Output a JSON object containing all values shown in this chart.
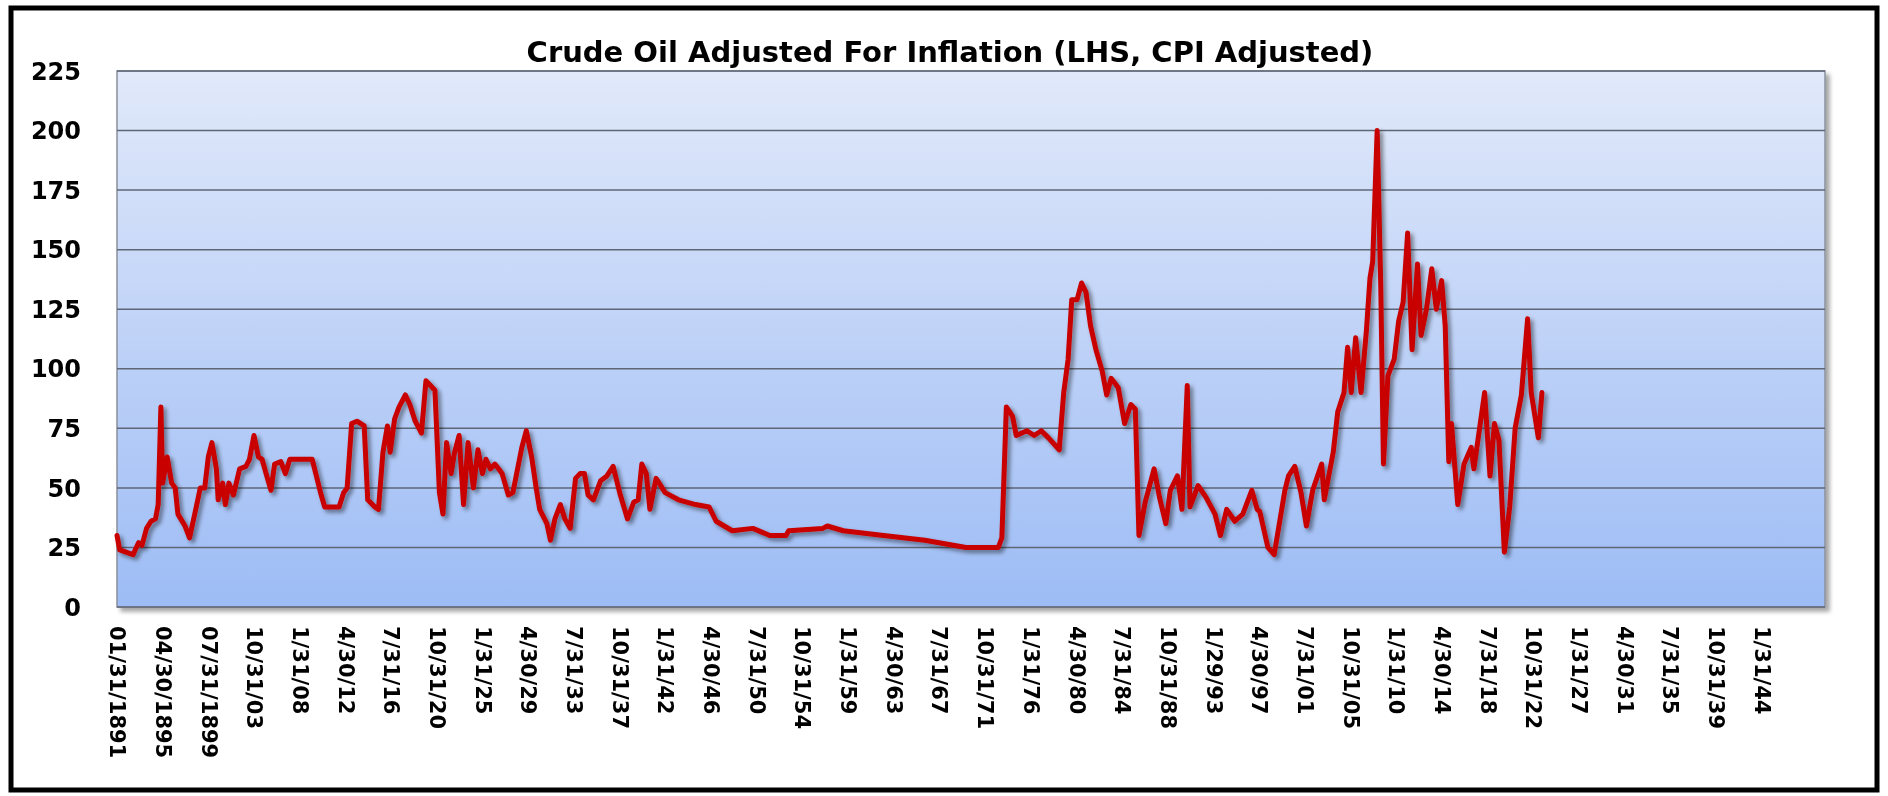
{
  "chart_data": {
    "type": "line",
    "title": "Crude Oil Adjusted For Inflation (LHS, CPI Adjusted)",
    "x": [
      "1891-01",
      "1891-04",
      "1892-07",
      "1893-01",
      "1893-05",
      "1893-10",
      "1894-03",
      "1894-08",
      "1894-11",
      "1895-02",
      "1895-04",
      "1895-09",
      "1896-02",
      "1896-06",
      "1896-09",
      "1897-05",
      "1897-10",
      "1898-05",
      "1898-10",
      "1899-03",
      "1899-07",
      "1899-11",
      "1900-04",
      "1900-06",
      "1900-11",
      "1901-02",
      "1901-06",
      "1901-11",
      "1902-06",
      "1903-01",
      "1903-05",
      "1903-10",
      "1904-03",
      "1904-07",
      "1905-01",
      "1905-05",
      "1905-09",
      "1906-04",
      "1906-09",
      "1907-02",
      "1908-01",
      "1909-03",
      "1910-01",
      "1910-05",
      "1911-09",
      "1912-02",
      "1912-06",
      "1912-11",
      "1913-05",
      "1914-01",
      "1914-05",
      "1915-01",
      "1915-05",
      "1915-10",
      "1916-03",
      "1916-06",
      "1916-11",
      "1917-04",
      "1917-11",
      "1918-04",
      "1918-10",
      "1919-05",
      "1919-10",
      "1920-03",
      "1920-08",
      "1921-01",
      "1921-05",
      "1921-09",
      "1922-02",
      "1922-06",
      "1922-11",
      "1923-04",
      "1923-09",
      "1924-03",
      "1924-08",
      "1925-01",
      "1925-05",
      "1925-10",
      "1926-03",
      "1926-11",
      "1927-06",
      "1927-11",
      "1928-09",
      "1929-02",
      "1929-08",
      "1930-01",
      "1930-05",
      "1931-01",
      "1931-05",
      "1931-10",
      "1932-04",
      "1932-09",
      "1933-03",
      "1933-09",
      "1934-02",
      "1934-07",
      "1934-11",
      "1935-05",
      "1936-01",
      "1936-08",
      "1937-03",
      "1937-11",
      "1938-07",
      "1939-02",
      "1939-07",
      "1939-11",
      "1940-04",
      "1940-08",
      "1941-03",
      "1942-01",
      "1943-04",
      "1944-11",
      "1946-02",
      "1946-10",
      "1948-04",
      "1950-03",
      "1951-10",
      "1953-04",
      "1953-07",
      "1956-09",
      "1957-02",
      "1958-08",
      "1962-05",
      "1966-03",
      "1970-01",
      "1973-01",
      "1973-05",
      "1973-10",
      "1974-05",
      "1974-09",
      "1975-09",
      "1976-05",
      "1977-01",
      "1977-09",
      "1978-09",
      "1979-02",
      "1979-07",
      "1979-11",
      "1980-05",
      "1980-10",
      "1981-03",
      "1981-08",
      "1982-02",
      "1982-09",
      "1983-02",
      "1983-07",
      "1984-03",
      "1984-10",
      "1985-05",
      "1985-10",
      "1986-02",
      "1986-09",
      "1987-07",
      "1988-01",
      "1988-08",
      "1989-01",
      "1989-09",
      "1990-02",
      "1990-08",
      "1990-11",
      "1991-08",
      "1992-05",
      "1993-03",
      "1993-09",
      "1994-04",
      "1995-01",
      "1995-10",
      "1996-08",
      "1997-02",
      "1997-05",
      "1998-02",
      "1998-09",
      "1999-09",
      "2000-01",
      "2000-08",
      "2001-03",
      "2001-09",
      "2002-04",
      "2003-02",
      "2003-05",
      "2004-03",
      "2004-08",
      "2005-03",
      "2005-07",
      "2005-11",
      "2006-04",
      "2006-10",
      "2007-04",
      "2007-08",
      "2007-11",
      "2008-04",
      "2008-08",
      "2008-11",
      "2009-04",
      "2009-11",
      "2010-04",
      "2010-09",
      "2011-02",
      "2011-07",
      "2012-01",
      "2012-05",
      "2012-11",
      "2013-05",
      "2013-10",
      "2014-04",
      "2014-08",
      "2014-12",
      "2015-03",
      "2015-10",
      "2016-05",
      "2017-01",
      "2017-04",
      "2018-04",
      "2018-10",
      "2019-03",
      "2019-08",
      "2020-02",
      "2020-08",
      "2021-02",
      "2021-09",
      "2022-04",
      "2022-08",
      "2023-04",
      "2023-08"
    ],
    "series": [
      {
        "color": "#c80000",
        "values": [
          30,
          24,
          22,
          27,
          26,
          33,
          36,
          37,
          43,
          84,
          52,
          63,
          52,
          50,
          39,
          34,
          29,
          41,
          50,
          50,
          63,
          69,
          58,
          45,
          52,
          43,
          52,
          47,
          58,
          59,
          62,
          72,
          63,
          62,
          54,
          49,
          60,
          61,
          56,
          62,
          62,
          62,
          47,
          42,
          42,
          48,
          50,
          77,
          78,
          76,
          45,
          42,
          41,
          65,
          76,
          65,
          79,
          84,
          89,
          85,
          78,
          73,
          95,
          93,
          91,
          48,
          39,
          69,
          56,
          65,
          72,
          43,
          69,
          50,
          66,
          56,
          62,
          58,
          60,
          56,
          47,
          48,
          67,
          74,
          63,
          50,
          41,
          35,
          28,
          37,
          43,
          37,
          33,
          54,
          56,
          56,
          47,
          45,
          53,
          55,
          59,
          47,
          37,
          44,
          45,
          60,
          56,
          41,
          54,
          48,
          45,
          43,
          42,
          36,
          32,
          33,
          30,
          30,
          32,
          33,
          34,
          32,
          30,
          28,
          25,
          25,
          29,
          84,
          80,
          72,
          74,
          72,
          74,
          71,
          66,
          90,
          104,
          129,
          129,
          136,
          132,
          118,
          108,
          99,
          89,
          96,
          92,
          77,
          85,
          83,
          30,
          44,
          58,
          46,
          35,
          49,
          55,
          41,
          93,
          42,
          51,
          46,
          39,
          30,
          41,
          36,
          39,
          49,
          41,
          40,
          25,
          22,
          49,
          55,
          59,
          48,
          34,
          49,
          60,
          45,
          65,
          82,
          90,
          109,
          90,
          113,
          90,
          116,
          138,
          145,
          200,
          135,
          60,
          97,
          104,
          120,
          128,
          157,
          108,
          144,
          114,
          125,
          142,
          125,
          137,
          118,
          61,
          77,
          43,
          60,
          67,
          58,
          90,
          55,
          77,
          70,
          23,
          42,
          75,
          89,
          121,
          90,
          71,
          90
        ]
      }
    ],
    "xlim": [
      "1891-01",
      "2049-12"
    ],
    "xticks": [
      {
        "value": "1891-01-31",
        "label": "01/31/1891"
      },
      {
        "value": "1895-04-30",
        "label": "04/30/1895"
      },
      {
        "value": "1899-07-31",
        "label": "07/31/1899"
      },
      {
        "value": "1903-10-31",
        "label": "10/31/03"
      },
      {
        "value": "1908-01-31",
        "label": "1/31/08"
      },
      {
        "value": "1912-04-30",
        "label": "4/30/12"
      },
      {
        "value": "1916-07-31",
        "label": "7/31/16"
      },
      {
        "value": "1920-10-31",
        "label": "10/31/20"
      },
      {
        "value": "1925-01-31",
        "label": "1/31/25"
      },
      {
        "value": "1929-04-30",
        "label": "4/30/29"
      },
      {
        "value": "1933-07-31",
        "label": "7/31/33"
      },
      {
        "value": "1937-10-31",
        "label": "10/31/37"
      },
      {
        "value": "1942-01-31",
        "label": "1/31/42"
      },
      {
        "value": "1946-04-30",
        "label": "4/30/46"
      },
      {
        "value": "1950-07-31",
        "label": "7/31/50"
      },
      {
        "value": "1954-10-31",
        "label": "10/31/54"
      },
      {
        "value": "1959-01-31",
        "label": "1/31/59"
      },
      {
        "value": "1963-04-30",
        "label": "4/30/63"
      },
      {
        "value": "1967-07-31",
        "label": "7/31/67"
      },
      {
        "value": "1971-10-31",
        "label": "10/31/71"
      },
      {
        "value": "1976-01-31",
        "label": "1/31/76"
      },
      {
        "value": "1980-04-30",
        "label": "4/30/80"
      },
      {
        "value": "1984-07-31",
        "label": "7/31/84"
      },
      {
        "value": "1988-10-31",
        "label": "10/31/88"
      },
      {
        "value": "1993-01-29",
        "label": "1/29/93"
      },
      {
        "value": "1997-04-30",
        "label": "4/30/97"
      },
      {
        "value": "2001-07-31",
        "label": "7/31/01"
      },
      {
        "value": "2005-10-31",
        "label": "10/31/05"
      },
      {
        "value": "2010-01-31",
        "label": "1/31/10"
      },
      {
        "value": "2014-04-30",
        "label": "4/30/14"
      },
      {
        "value": "2018-07-31",
        "label": "7/31/18"
      },
      {
        "value": "2022-10-31",
        "label": "10/31/22"
      },
      {
        "value": "2027-01-31",
        "label": "1/31/27"
      },
      {
        "value": "2031-04-30",
        "label": "4/30/31"
      },
      {
        "value": "2035-07-31",
        "label": "7/31/35"
      },
      {
        "value": "2039-10-31",
        "label": "10/31/39"
      },
      {
        "value": "2044-01-31",
        "label": "1/31/44"
      }
    ],
    "ylim": [
      0,
      225
    ],
    "yticks": [
      0,
      25,
      50,
      75,
      100,
      125,
      150,
      175,
      200,
      225
    ],
    "grid": "y"
  }
}
